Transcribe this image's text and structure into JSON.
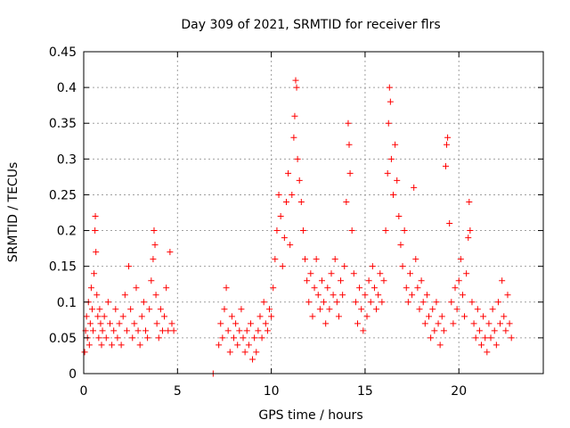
{
  "chart_data": {
    "type": "scatter",
    "title": "Day 309 of 2021, SRMTID for receiver flrs",
    "xlabel": "GPS time / hours",
    "ylabel": "SRMTID / TECUs",
    "xlim": [
      0,
      24.5
    ],
    "ylim": [
      0,
      0.45
    ],
    "xticks": [
      0,
      5,
      10,
      15,
      20
    ],
    "xtick_labels": [
      "0",
      "5",
      "10",
      "15",
      "20"
    ],
    "yticks": [
      0,
      0.05,
      0.1,
      0.15,
      0.2,
      0.25,
      0.3,
      0.35,
      0.4,
      0.45
    ],
    "ytick_labels": [
      "0",
      "0.05",
      "0.1",
      "0.15",
      "0.2",
      "0.25",
      "0.3",
      "0.35",
      "0.4",
      "0.45"
    ],
    "grid": true,
    "marker": "plus",
    "color": "#ff0000",
    "series": [
      {
        "name": "",
        "points": [
          [
            0.05,
            0.03
          ],
          [
            0.1,
            0.06
          ],
          [
            0.15,
            0.08
          ],
          [
            0.2,
            0.05
          ],
          [
            0.25,
            0.1
          ],
          [
            0.3,
            0.04
          ],
          [
            0.35,
            0.07
          ],
          [
            0.4,
            0.12
          ],
          [
            0.45,
            0.09
          ],
          [
            0.5,
            0.06
          ],
          [
            0.55,
            0.14
          ],
          [
            0.6,
            0.2
          ],
          [
            0.62,
            0.22
          ],
          [
            0.65,
            0.17
          ],
          [
            0.7,
            0.11
          ],
          [
            0.75,
            0.08
          ],
          [
            0.8,
            0.05
          ],
          [
            0.85,
            0.09
          ],
          [
            0.9,
            0.07
          ],
          [
            0.95,
            0.04
          ],
          [
            1.0,
            0.06
          ],
          [
            1.1,
            0.08
          ],
          [
            1.2,
            0.05
          ],
          [
            1.3,
            0.1
          ],
          [
            1.4,
            0.07
          ],
          [
            1.5,
            0.04
          ],
          [
            1.6,
            0.06
          ],
          [
            1.7,
            0.09
          ],
          [
            1.8,
            0.05
          ],
          [
            1.9,
            0.07
          ],
          [
            2.0,
            0.04
          ],
          [
            2.1,
            0.08
          ],
          [
            2.2,
            0.11
          ],
          [
            2.3,
            0.06
          ],
          [
            2.4,
            0.15
          ],
          [
            2.5,
            0.09
          ],
          [
            2.6,
            0.05
          ],
          [
            2.7,
            0.07
          ],
          [
            2.8,
            0.12
          ],
          [
            2.9,
            0.06
          ],
          [
            3.0,
            0.04
          ],
          [
            3.1,
            0.08
          ],
          [
            3.2,
            0.1
          ],
          [
            3.3,
            0.06
          ],
          [
            3.4,
            0.05
          ],
          [
            3.5,
            0.09
          ],
          [
            3.6,
            0.13
          ],
          [
            3.7,
            0.16
          ],
          [
            3.75,
            0.2
          ],
          [
            3.8,
            0.18
          ],
          [
            3.85,
            0.11
          ],
          [
            3.9,
            0.07
          ],
          [
            4.0,
            0.05
          ],
          [
            4.1,
            0.09
          ],
          [
            4.2,
            0.06
          ],
          [
            4.3,
            0.08
          ],
          [
            4.4,
            0.12
          ],
          [
            4.5,
            0.06
          ],
          [
            4.6,
            0.17
          ],
          [
            4.7,
            0.07
          ],
          [
            4.8,
            0.06
          ],
          [
            6.9,
            0.0
          ],
          [
            7.2,
            0.04
          ],
          [
            7.3,
            0.07
          ],
          [
            7.4,
            0.05
          ],
          [
            7.5,
            0.09
          ],
          [
            7.6,
            0.12
          ],
          [
            7.7,
            0.06
          ],
          [
            7.8,
            0.03
          ],
          [
            7.9,
            0.08
          ],
          [
            8.0,
            0.05
          ],
          [
            8.1,
            0.07
          ],
          [
            8.2,
            0.04
          ],
          [
            8.3,
            0.06
          ],
          [
            8.4,
            0.09
          ],
          [
            8.5,
            0.05
          ],
          [
            8.6,
            0.03
          ],
          [
            8.7,
            0.06
          ],
          [
            8.8,
            0.04
          ],
          [
            8.9,
            0.07
          ],
          [
            9.0,
            0.02
          ],
          [
            9.1,
            0.05
          ],
          [
            9.2,
            0.03
          ],
          [
            9.3,
            0.06
          ],
          [
            9.4,
            0.08
          ],
          [
            9.5,
            0.05
          ],
          [
            9.6,
            0.1
          ],
          [
            9.7,
            0.07
          ],
          [
            9.8,
            0.06
          ],
          [
            9.9,
            0.09
          ],
          [
            10.0,
            0.08
          ],
          [
            10.1,
            0.12
          ],
          [
            10.2,
            0.16
          ],
          [
            10.3,
            0.2
          ],
          [
            10.4,
            0.25
          ],
          [
            10.5,
            0.22
          ],
          [
            10.6,
            0.15
          ],
          [
            10.7,
            0.19
          ],
          [
            10.8,
            0.24
          ],
          [
            10.9,
            0.28
          ],
          [
            11.0,
            0.18
          ],
          [
            11.1,
            0.25
          ],
          [
            11.2,
            0.33
          ],
          [
            11.25,
            0.36
          ],
          [
            11.3,
            0.41
          ],
          [
            11.35,
            0.4
          ],
          [
            11.4,
            0.3
          ],
          [
            11.5,
            0.27
          ],
          [
            11.6,
            0.24
          ],
          [
            11.7,
            0.2
          ],
          [
            11.8,
            0.16
          ],
          [
            11.9,
            0.13
          ],
          [
            12.0,
            0.1
          ],
          [
            12.1,
            0.14
          ],
          [
            12.2,
            0.08
          ],
          [
            12.3,
            0.12
          ],
          [
            12.4,
            0.16
          ],
          [
            12.5,
            0.11
          ],
          [
            12.6,
            0.09
          ],
          [
            12.7,
            0.13
          ],
          [
            12.8,
            0.1
          ],
          [
            12.9,
            0.07
          ],
          [
            13.0,
            0.12
          ],
          [
            13.1,
            0.09
          ],
          [
            13.2,
            0.14
          ],
          [
            13.3,
            0.11
          ],
          [
            13.4,
            0.16
          ],
          [
            13.5,
            0.1
          ],
          [
            13.6,
            0.08
          ],
          [
            13.7,
            0.13
          ],
          [
            13.8,
            0.11
          ],
          [
            13.9,
            0.15
          ],
          [
            14.0,
            0.24
          ],
          [
            14.1,
            0.35
          ],
          [
            14.15,
            0.32
          ],
          [
            14.2,
            0.28
          ],
          [
            14.3,
            0.2
          ],
          [
            14.4,
            0.14
          ],
          [
            14.5,
            0.1
          ],
          [
            14.6,
            0.07
          ],
          [
            14.7,
            0.12
          ],
          [
            14.8,
            0.09
          ],
          [
            14.9,
            0.06
          ],
          [
            15.0,
            0.11
          ],
          [
            15.1,
            0.08
          ],
          [
            15.2,
            0.13
          ],
          [
            15.3,
            0.1
          ],
          [
            15.4,
            0.15
          ],
          [
            15.5,
            0.12
          ],
          [
            15.6,
            0.09
          ],
          [
            15.7,
            0.11
          ],
          [
            15.8,
            0.14
          ],
          [
            15.9,
            0.1
          ],
          [
            16.0,
            0.13
          ],
          [
            16.1,
            0.2
          ],
          [
            16.2,
            0.28
          ],
          [
            16.25,
            0.35
          ],
          [
            16.3,
            0.4
          ],
          [
            16.35,
            0.38
          ],
          [
            16.4,
            0.3
          ],
          [
            16.5,
            0.25
          ],
          [
            16.6,
            0.32
          ],
          [
            16.7,
            0.27
          ],
          [
            16.8,
            0.22
          ],
          [
            16.9,
            0.18
          ],
          [
            17.0,
            0.15
          ],
          [
            17.1,
            0.2
          ],
          [
            17.2,
            0.12
          ],
          [
            17.3,
            0.1
          ],
          [
            17.4,
            0.14
          ],
          [
            17.5,
            0.11
          ],
          [
            17.6,
            0.26
          ],
          [
            17.7,
            0.16
          ],
          [
            17.8,
            0.12
          ],
          [
            17.9,
            0.09
          ],
          [
            18.0,
            0.13
          ],
          [
            18.1,
            0.1
          ],
          [
            18.2,
            0.07
          ],
          [
            18.3,
            0.11
          ],
          [
            18.4,
            0.08
          ],
          [
            18.5,
            0.05
          ],
          [
            18.6,
            0.09
          ],
          [
            18.7,
            0.06
          ],
          [
            18.8,
            0.1
          ],
          [
            18.9,
            0.07
          ],
          [
            19.0,
            0.04
          ],
          [
            19.1,
            0.08
          ],
          [
            19.2,
            0.06
          ],
          [
            19.3,
            0.29
          ],
          [
            19.35,
            0.32
          ],
          [
            19.4,
            0.33
          ],
          [
            19.5,
            0.21
          ],
          [
            19.6,
            0.1
          ],
          [
            19.7,
            0.07
          ],
          [
            19.8,
            0.12
          ],
          [
            19.9,
            0.09
          ],
          [
            20.0,
            0.13
          ],
          [
            20.1,
            0.16
          ],
          [
            20.2,
            0.11
          ],
          [
            20.3,
            0.08
          ],
          [
            20.4,
            0.14
          ],
          [
            20.5,
            0.19
          ],
          [
            20.55,
            0.24
          ],
          [
            20.6,
            0.2
          ],
          [
            20.7,
            0.1
          ],
          [
            20.8,
            0.07
          ],
          [
            20.9,
            0.05
          ],
          [
            21.0,
            0.09
          ],
          [
            21.1,
            0.06
          ],
          [
            21.2,
            0.04
          ],
          [
            21.3,
            0.08
          ],
          [
            21.4,
            0.05
          ],
          [
            21.5,
            0.03
          ],
          [
            21.6,
            0.07
          ],
          [
            21.7,
            0.05
          ],
          [
            21.8,
            0.09
          ],
          [
            21.9,
            0.06
          ],
          [
            22.0,
            0.04
          ],
          [
            22.1,
            0.1
          ],
          [
            22.2,
            0.07
          ],
          [
            22.3,
            0.13
          ],
          [
            22.4,
            0.08
          ],
          [
            22.5,
            0.06
          ],
          [
            22.6,
            0.11
          ],
          [
            22.7,
            0.07
          ],
          [
            22.8,
            0.05
          ]
        ]
      }
    ]
  }
}
